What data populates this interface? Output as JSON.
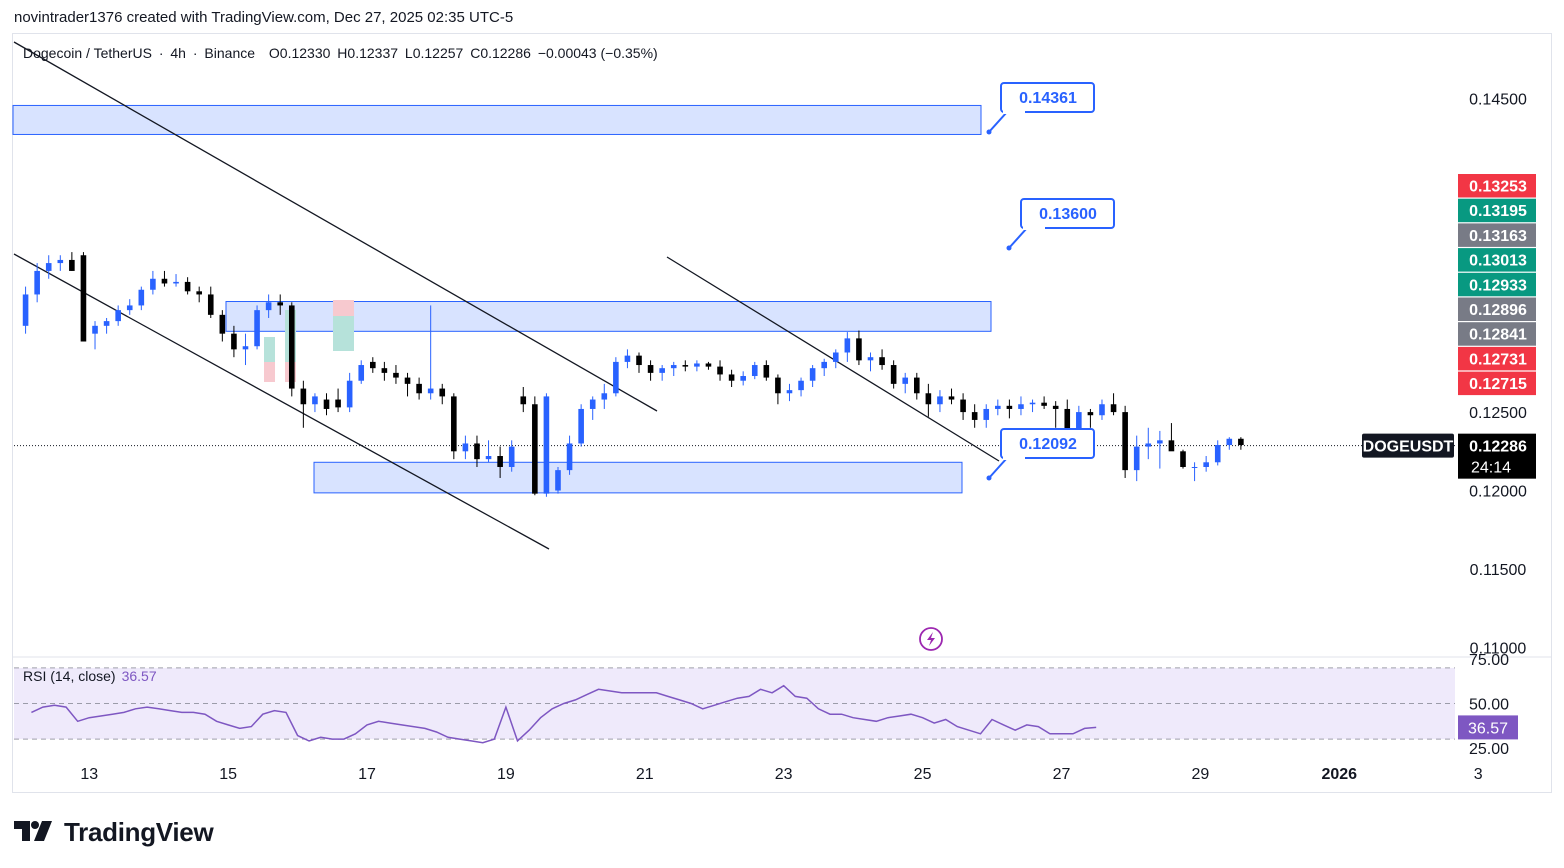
{
  "header": {
    "credit": "novintrader1376 created with TradingView.com, Dec 27, 2025 02:35 UTC-5"
  },
  "legend": {
    "pair": "Dogecoin / TetherUS",
    "interval": "4h",
    "exchange": "Binance",
    "open": "O0.12330",
    "high": "H0.12337",
    "low": "L0.12257",
    "close": "C0.12286",
    "change": "−0.00043 (−0.35%)"
  },
  "rsi_legend": {
    "label": "RSI (14, close)",
    "value": "36.57"
  },
  "brand": {
    "name": "TradingView"
  },
  "colors": {
    "bull": "#2962ff",
    "bear": "#000000",
    "zone_fill": "#d6e2ff",
    "zone_border": "#2962ff",
    "rsi_line": "#7e57c2",
    "rsi_band": "#efeafb",
    "label_red": "#f23645",
    "label_green": "#089981",
    "label_gray": "#787b86"
  },
  "chart_data": [
    {
      "type": "candlestick",
      "symbol": "DOGEUSDT",
      "last_price": "0.12286",
      "countdown": "24:14",
      "y_axis": {
        "ylim": [
          0.10945,
          0.14885
        ],
        "ticks": [
          "0.14500",
          "0.12500",
          "0.12000",
          "0.11500",
          "0.11000"
        ]
      },
      "x_axis": {
        "range_index": [
          -1,
          123.5
        ],
        "ticks": [
          {
            "label": "13",
            "index": 5.5
          },
          {
            "label": "15",
            "index": 17.5
          },
          {
            "label": "17",
            "index": 29.5
          },
          {
            "label": "19",
            "index": 41.5
          },
          {
            "label": "21",
            "index": 53.5
          },
          {
            "label": "23",
            "index": 65.5
          },
          {
            "label": "25",
            "index": 77.5
          },
          {
            "label": "27",
            "index": 89.5
          },
          {
            "label": "29",
            "index": 101.5
          },
          {
            "label": "2026",
            "index": 113.5,
            "bold": true
          },
          {
            "label": "3",
            "index": 125.5
          }
        ]
      },
      "price_labels": [
        {
          "value": "0.13253",
          "color": "red"
        },
        {
          "value": "0.13195",
          "color": "green"
        },
        {
          "value": "0.13163",
          "color": "gray"
        },
        {
          "value": "0.13013",
          "color": "green"
        },
        {
          "value": "0.12933",
          "color": "green"
        },
        {
          "value": "0.12896",
          "color": "gray"
        },
        {
          "value": "0.12841",
          "color": "gray"
        },
        {
          "value": "0.12731",
          "color": "red"
        },
        {
          "value": "0.12715",
          "color": "red"
        }
      ],
      "candles_ohlc": [
        [
          0.1305,
          0.133,
          0.13,
          0.1325
        ],
        [
          0.1325,
          0.1345,
          0.132,
          0.134
        ],
        [
          0.134,
          0.135,
          0.1335,
          0.1345
        ],
        [
          0.1345,
          0.135,
          0.134,
          0.1347
        ],
        [
          0.1347,
          0.1352,
          0.134,
          0.134
        ],
        [
          0.135,
          0.1352,
          0.1295,
          0.1295
        ],
        [
          0.13,
          0.1308,
          0.129,
          0.1305
        ],
        [
          0.1305,
          0.131,
          0.13,
          0.1308
        ],
        [
          0.1308,
          0.1318,
          0.1305,
          0.1315
        ],
        [
          0.1315,
          0.1322,
          0.1312,
          0.1318
        ],
        [
          0.1318,
          0.133,
          0.1315,
          0.1328
        ],
        [
          0.1328,
          0.134,
          0.1325,
          0.1335
        ],
        [
          0.1335,
          0.134,
          0.133,
          0.1332
        ],
        [
          0.1332,
          0.1338,
          0.133,
          0.1333
        ],
        [
          0.1333,
          0.1336,
          0.1325,
          0.1327
        ],
        [
          0.1327,
          0.133,
          0.132,
          0.1325
        ],
        [
          0.1325,
          0.133,
          0.131,
          0.1312
        ],
        [
          0.1312,
          0.1315,
          0.1295,
          0.13
        ],
        [
          0.13,
          0.1305,
          0.1285,
          0.129
        ],
        [
          0.129,
          0.13,
          0.128,
          0.1292
        ],
        [
          0.1292,
          0.1318,
          0.129,
          0.1315
        ],
        [
          0.1315,
          0.1325,
          0.131,
          0.132
        ],
        [
          0.132,
          0.1325,
          0.1312,
          0.1318
        ],
        [
          0.1318,
          0.132,
          0.126,
          0.1265
        ],
        [
          0.1265,
          0.127,
          0.124,
          0.1255
        ],
        [
          0.1255,
          0.1262,
          0.125,
          0.126
        ],
        [
          0.1258,
          0.1262,
          0.1248,
          0.1252
        ],
        [
          0.1258,
          0.1265,
          0.125,
          0.1253
        ],
        [
          0.1253,
          0.1275,
          0.125,
          0.127
        ],
        [
          0.127,
          0.1283,
          0.1268,
          0.128
        ],
        [
          0.1282,
          0.1285,
          0.1275,
          0.1278
        ],
        [
          0.1278,
          0.1282,
          0.127,
          0.1275
        ],
        [
          0.1275,
          0.128,
          0.1268,
          0.1272
        ],
        [
          0.1272,
          0.1275,
          0.126,
          0.1268
        ],
        [
          0.1268,
          0.1272,
          0.1258,
          0.1262
        ],
        [
          0.1262,
          0.1318,
          0.1258,
          0.1265
        ],
        [
          0.1265,
          0.1268,
          0.1255,
          0.126
        ],
        [
          0.126,
          0.1262,
          0.122,
          0.1225
        ],
        [
          0.1225,
          0.1235,
          0.122,
          0.123
        ],
        [
          0.123,
          0.1235,
          0.1215,
          0.122
        ],
        [
          0.122,
          0.1232,
          0.1218,
          0.1222
        ],
        [
          0.1222,
          0.1228,
          0.1208,
          0.1215
        ],
        [
          0.1215,
          0.1232,
          0.1212,
          0.1228
        ],
        [
          0.126,
          0.1266,
          0.125,
          0.1255
        ],
        [
          0.1255,
          0.126,
          0.1197,
          0.1198
        ],
        [
          0.1198,
          0.1262,
          0.1196,
          0.126
        ],
        [
          0.12,
          0.1215,
          0.1198,
          0.1213
        ],
        [
          0.1213,
          0.1235,
          0.121,
          0.123
        ],
        [
          0.123,
          0.1255,
          0.1228,
          0.1252
        ],
        [
          0.1252,
          0.126,
          0.1245,
          0.1258
        ],
        [
          0.1258,
          0.1268,
          0.1252,
          0.1262
        ],
        [
          0.1262,
          0.1285,
          0.126,
          0.1282
        ],
        [
          0.1282,
          0.129,
          0.1278,
          0.1286
        ],
        [
          0.1286,
          0.1288,
          0.1275,
          0.128
        ],
        [
          0.128,
          0.1283,
          0.127,
          0.1275
        ],
        [
          0.1275,
          0.128,
          0.127,
          0.1278
        ],
        [
          0.1278,
          0.1282,
          0.1273,
          0.128
        ],
        [
          0.128,
          0.1283,
          0.1276,
          0.1279
        ],
        [
          0.1279,
          0.1283,
          0.1276,
          0.1281
        ],
        [
          0.1281,
          0.1282,
          0.1277,
          0.1279
        ],
        [
          0.1279,
          0.1283,
          0.127,
          0.1274
        ],
        [
          0.1274,
          0.1277,
          0.1266,
          0.127
        ],
        [
          0.127,
          0.1276,
          0.1267,
          0.1273
        ],
        [
          0.1273,
          0.1282,
          0.1271,
          0.128
        ],
        [
          0.128,
          0.1283,
          0.127,
          0.1272
        ],
        [
          0.1272,
          0.1274,
          0.1255,
          0.1262
        ],
        [
          0.1262,
          0.1268,
          0.1257,
          0.1264
        ],
        [
          0.1264,
          0.1272,
          0.126,
          0.127
        ],
        [
          0.127,
          0.128,
          0.1266,
          0.1278
        ],
        [
          0.1278,
          0.1284,
          0.1273,
          0.1282
        ],
        [
          0.1282,
          0.129,
          0.1278,
          0.1288
        ],
        [
          0.1288,
          0.1301,
          0.1282,
          0.1297
        ],
        [
          0.1297,
          0.1302,
          0.128,
          0.1283
        ],
        [
          0.1283,
          0.1288,
          0.1276,
          0.1285
        ],
        [
          0.1285,
          0.129,
          0.1277,
          0.128
        ],
        [
          0.128,
          0.1283,
          0.1265,
          0.1268
        ],
        [
          0.1268,
          0.1275,
          0.1262,
          0.1272
        ],
        [
          0.1272,
          0.1275,
          0.1258,
          0.1262
        ],
        [
          0.1262,
          0.1268,
          0.1247,
          0.1255
        ],
        [
          0.1255,
          0.1264,
          0.125,
          0.126
        ],
        [
          0.126,
          0.1265,
          0.1255,
          0.1258
        ],
        [
          0.1258,
          0.1262,
          0.1245,
          0.125
        ],
        [
          0.125,
          0.1255,
          0.124,
          0.1245
        ],
        [
          0.1245,
          0.1255,
          0.124,
          0.1252
        ],
        [
          0.1252,
          0.1258,
          0.1248,
          0.1254
        ],
        [
          0.1254,
          0.1258,
          0.1246,
          0.1252
        ],
        [
          0.1252,
          0.126,
          0.1248,
          0.1255
        ],
        [
          0.1255,
          0.1258,
          0.125,
          0.1256
        ],
        [
          0.1256,
          0.126,
          0.1252,
          0.1254
        ],
        [
          0.1254,
          0.1257,
          0.124,
          0.1252
        ],
        [
          0.1252,
          0.1258,
          0.1236,
          0.1238
        ],
        [
          0.1238,
          0.1254,
          0.1236,
          0.125
        ],
        [
          0.125,
          0.1252,
          0.124,
          0.1248
        ],
        [
          0.1248,
          0.1258,
          0.1245,
          0.1255
        ],
        [
          0.1255,
          0.1262,
          0.1248,
          0.125
        ],
        [
          0.125,
          0.1254,
          0.1208,
          0.1213
        ],
        [
          0.1213,
          0.1235,
          0.1206,
          0.1228
        ],
        [
          0.1228,
          0.124,
          0.122,
          0.123
        ],
        [
          0.123,
          0.1238,
          0.1214,
          0.1232
        ],
        [
          0.1232,
          0.1243,
          0.1226,
          0.1225
        ],
        [
          0.1225,
          0.1226,
          0.1214,
          0.1215
        ],
        [
          0.1215,
          0.1218,
          0.1206,
          0.1215
        ],
        [
          0.1215,
          0.1222,
          0.1212,
          0.1218
        ],
        [
          0.1218,
          0.1232,
          0.1216,
          0.1229
        ],
        [
          0.1229,
          0.1234,
          0.1226,
          0.1233
        ],
        [
          0.1233,
          0.1234,
          0.1226,
          0.1229
        ]
      ],
      "zones": [
        {
          "low": 0.1427,
          "high": 0.14455
        },
        {
          "low": 0.13015,
          "high": 0.13205
        },
        {
          "low": 0.11985,
          "high": 0.1218
        }
      ],
      "callouts": [
        "0.14361",
        "0.13600",
        "0.12092"
      ]
    },
    {
      "type": "line",
      "title": "RSI (14, close)",
      "last_value": "36.57",
      "ylim": [
        25,
        75
      ],
      "band": [
        30,
        70
      ],
      "ticks": [
        "75.00",
        "50.00",
        "25.00"
      ],
      "values": [
        45,
        48,
        49,
        48,
        40,
        42,
        43,
        44,
        45,
        47,
        48,
        47,
        46,
        45,
        45,
        44,
        40,
        38,
        36,
        37,
        44,
        46,
        45,
        32,
        29,
        31,
        30,
        30,
        33,
        38,
        40,
        39,
        38,
        37,
        36,
        34,
        31,
        30,
        29,
        28,
        30,
        48,
        29,
        35,
        42,
        47,
        50,
        52,
        55,
        58,
        57,
        56,
        56,
        56,
        56,
        54,
        52,
        50,
        47,
        49,
        51,
        53,
        54,
        58,
        56,
        60,
        54,
        53,
        47,
        44,
        44,
        42,
        41,
        40,
        42,
        43,
        44,
        42,
        39,
        41,
        37,
        35,
        33,
        41,
        38,
        35,
        38,
        37,
        33,
        33,
        33,
        36,
        36.57
      ]
    }
  ]
}
